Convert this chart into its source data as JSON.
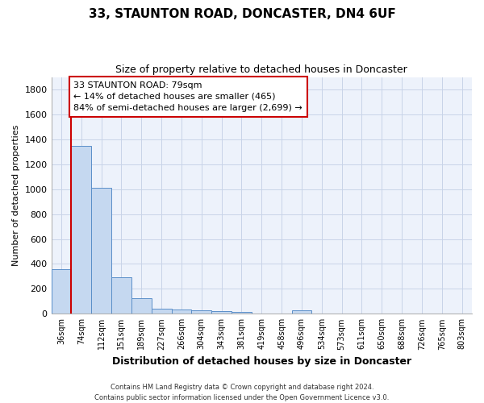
{
  "title1": "33, STAUNTON ROAD, DONCASTER, DN4 6UF",
  "title2": "Size of property relative to detached houses in Doncaster",
  "xlabel": "Distribution of detached houses by size in Doncaster",
  "ylabel": "Number of detached properties",
  "categories": [
    "36sqm",
    "74sqm",
    "112sqm",
    "151sqm",
    "189sqm",
    "227sqm",
    "266sqm",
    "304sqm",
    "343sqm",
    "381sqm",
    "419sqm",
    "458sqm",
    "496sqm",
    "534sqm",
    "573sqm",
    "611sqm",
    "650sqm",
    "688sqm",
    "726sqm",
    "765sqm",
    "803sqm"
  ],
  "values": [
    355,
    1350,
    1008,
    290,
    125,
    42,
    35,
    27,
    20,
    16,
    0,
    0,
    25,
    0,
    0,
    0,
    0,
    0,
    0,
    0,
    0
  ],
  "bar_color": "#c5d8f0",
  "bar_edge_color": "#5b8fc9",
  "vline_color": "#cc0000",
  "annotation_text": "33 STAUNTON ROAD: 79sqm\n← 14% of detached houses are smaller (465)\n84% of semi-detached houses are larger (2,699) →",
  "annotation_box_color": "#cc0000",
  "ylim": [
    0,
    1900
  ],
  "yticks": [
    0,
    200,
    400,
    600,
    800,
    1000,
    1200,
    1400,
    1600,
    1800
  ],
  "footer_line1": "Contains HM Land Registry data © Crown copyright and database right 2024.",
  "footer_line2": "Contains public sector information licensed under the Open Government Licence v3.0.",
  "bg_color": "#edf2fb",
  "grid_color": "#c8d4e8"
}
